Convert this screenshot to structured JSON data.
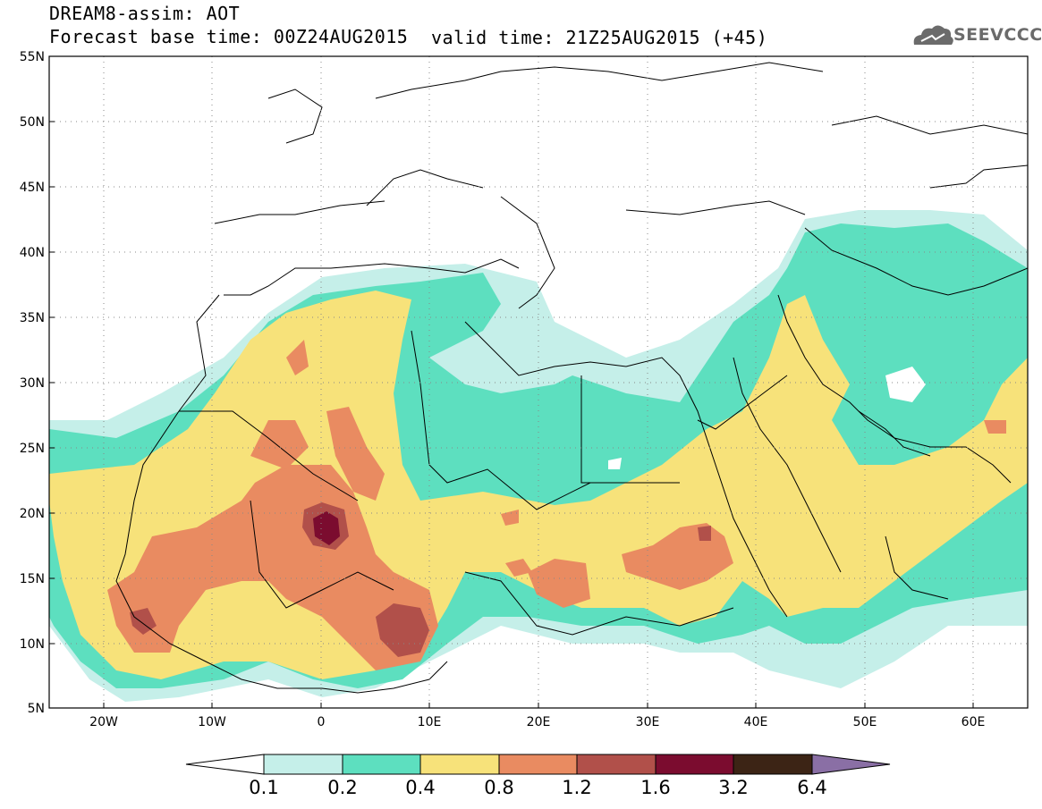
{
  "header": {
    "title_line1": "DREAM8-assim: AOT",
    "title_line2": "Forecast base time: 00Z24AUG2015",
    "valid_time": "valid time: 21Z25AUG2015 (+45)",
    "logo_text": "SEEVCCC"
  },
  "map": {
    "lon_range": [
      -25,
      65
    ],
    "lat_range": [
      5,
      55
    ],
    "lat_ticks": [
      "55N",
      "50N",
      "45N",
      "40N",
      "35N",
      "30N",
      "25N",
      "20N",
      "15N",
      "10N",
      "5N"
    ],
    "lon_ticks": [
      "20W",
      "10W",
      "0",
      "10E",
      "20E",
      "30E",
      "40E",
      "50E",
      "60E"
    ],
    "grid": "dotted"
  },
  "colorbar": {
    "labels": [
      "0.1",
      "0.2",
      "0.4",
      "0.8",
      "1.2",
      "1.6",
      "3.2",
      "6.4"
    ],
    "colors": [
      "#ffffff",
      "#c5efe9",
      "#5ddfbf",
      "#f7e27a",
      "#e98b61",
      "#b1504a",
      "#7b0c2f",
      "#3c2415",
      "#8a6fa5"
    ]
  }
}
